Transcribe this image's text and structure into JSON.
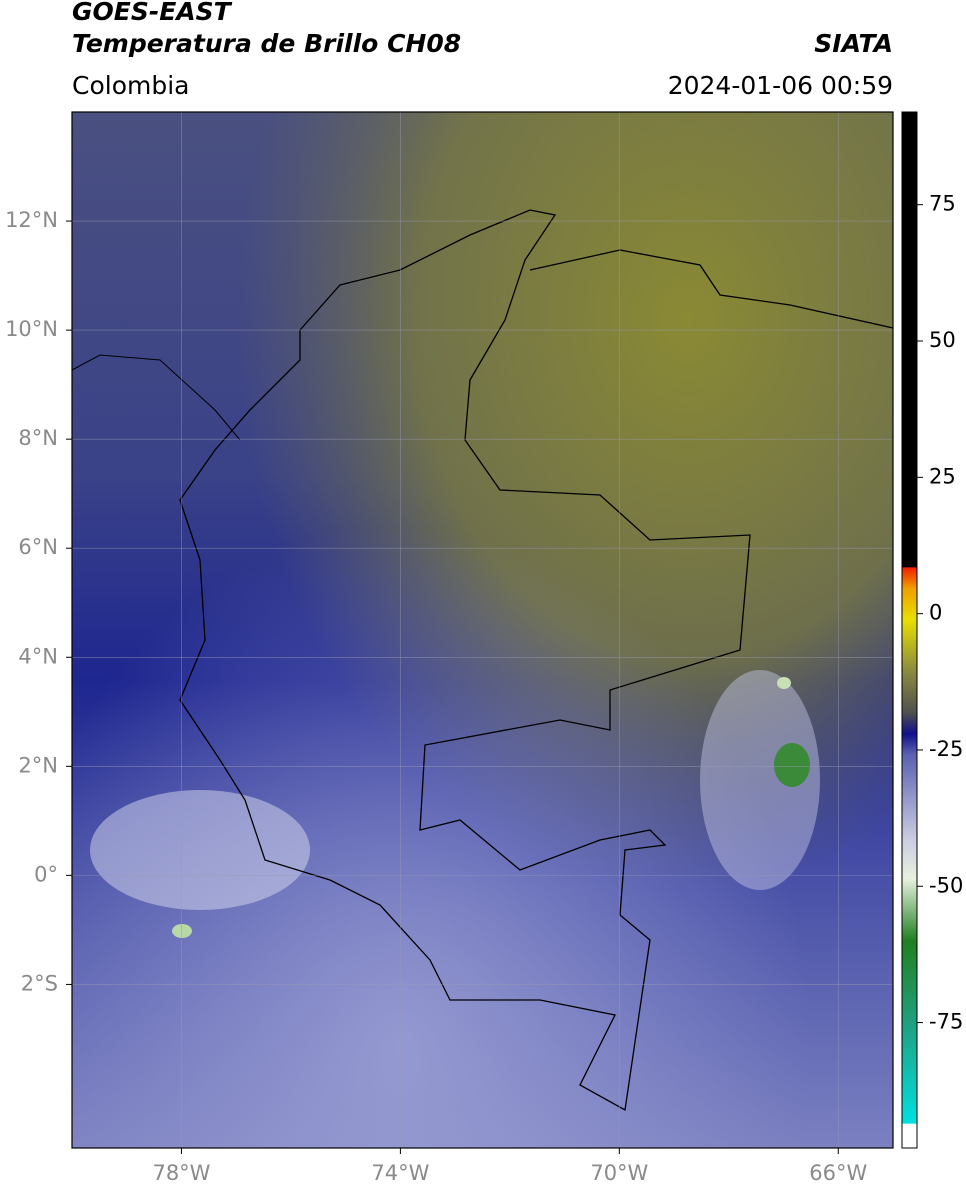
{
  "header": {
    "satellite": "GOES-EAST",
    "product": "Temperatura de Brillo CH08",
    "source": "SIATA",
    "region": "Colombia",
    "datetime": "2024-01-06 00:59"
  },
  "map": {
    "xlim": [
      -80,
      -65
    ],
    "ylim": [
      -5,
      14
    ],
    "xticks": [
      {
        "value": -78,
        "label": "78°W"
      },
      {
        "value": -74,
        "label": "74°W"
      },
      {
        "value": -70,
        "label": "70°W"
      },
      {
        "value": -66,
        "label": "66°W"
      }
    ],
    "yticks": [
      {
        "value": 12,
        "label": "12°N"
      },
      {
        "value": 10,
        "label": "10°N"
      },
      {
        "value": 8,
        "label": "8°N"
      },
      {
        "value": 6,
        "label": "6°N"
      },
      {
        "value": 4,
        "label": "4°N"
      },
      {
        "value": 2,
        "label": "2°N"
      },
      {
        "value": 0,
        "label": "0°"
      },
      {
        "value": -2,
        "label": "2°S"
      }
    ],
    "grid": true
  },
  "colorbar": {
    "clim": [
      -98,
      92
    ],
    "ticks": [
      75,
      50,
      25,
      0,
      -25,
      -50,
      -75
    ]
  }
}
